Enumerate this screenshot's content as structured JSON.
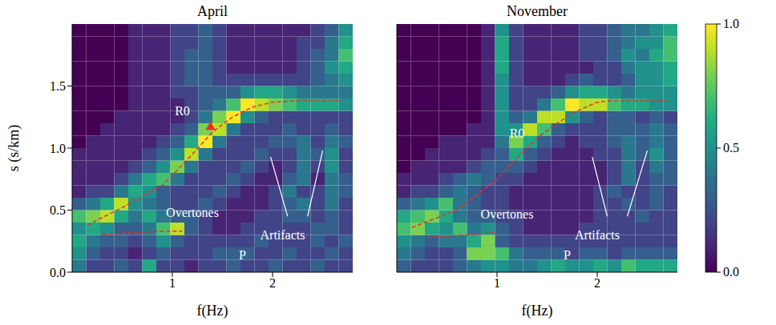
{
  "colorbar": {
    "range": [
      0,
      1
    ],
    "ticks": [
      {
        "value": 0,
        "label": "0.0"
      },
      {
        "value": 0.5,
        "label": "0.5"
      },
      {
        "value": 1,
        "label": "1.0"
      }
    ]
  },
  "chart_data": [
    {
      "type": "heatmap",
      "title": "April",
      "x_label": "f(Hz)",
      "y_label": "s (s/km)",
      "tick_labels": true,
      "xlim": [
        0,
        2.8
      ],
      "xticks": [
        1,
        2
      ],
      "ylim": [
        0,
        2.0
      ],
      "yticks": [
        {
          "value": 0,
          "label": "0.0"
        },
        {
          "value": 0.5,
          "label": "0.5"
        },
        {
          "value": 1,
          "label": "1.0"
        },
        {
          "value": 1.5,
          "label": "1.5"
        }
      ],
      "cell_f_edges": [
        0,
        0.14,
        0.28,
        0.42,
        0.56,
        0.7,
        0.84,
        0.98,
        1.12,
        1.26,
        1.4,
        1.54,
        1.68,
        1.82,
        1.96,
        2.1,
        2.24,
        2.38,
        2.52,
        2.66,
        2.8
      ],
      "cell_s_edges": [
        0,
        0.1,
        0.2,
        0.3,
        0.4,
        0.5,
        0.6,
        0.7,
        0.8,
        0.9,
        1.0,
        1.1,
        1.2,
        1.3,
        1.4,
        1.5,
        1.6,
        1.7,
        1.8,
        1.9,
        2.0
      ],
      "cells": [
        [
          0.4,
          0.2,
          0.2,
          0.3,
          0.2,
          0.6,
          0.2,
          0.2,
          0.1,
          0.2,
          0.2,
          0.3,
          0.2,
          0.2,
          0.3,
          0.2,
          0.2,
          0.3,
          0.2,
          0.2
        ],
        [
          0.5,
          0.3,
          0.2,
          0.2,
          0.1,
          0.2,
          0.3,
          0.2,
          0.2,
          0.2,
          0.3,
          0.3,
          0.3,
          0.2,
          0.2,
          0.3,
          0.2,
          0.2,
          0.3,
          0.2
        ],
        [
          0.6,
          0.4,
          0.3,
          0.3,
          0.2,
          0.3,
          0.5,
          0.3,
          0.2,
          0.2,
          0.2,
          0.2,
          0.2,
          0.3,
          0.2,
          0.2,
          0.2,
          0.3,
          0.2,
          0.3
        ],
        [
          0.5,
          0.6,
          0.5,
          0.3,
          0.3,
          0.4,
          0.7,
          0.9,
          0.3,
          0.2,
          0.1,
          0.1,
          0.2,
          0.2,
          0.2,
          0.2,
          0.2,
          0.3,
          0.3,
          0.2
        ],
        [
          0.7,
          0.8,
          0.9,
          0.6,
          0.4,
          0.6,
          0.4,
          0.3,
          0.3,
          0.2,
          0.1,
          0.1,
          0.1,
          0.2,
          0.2,
          0.3,
          0.3,
          0.2,
          0.3,
          0.2
        ],
        [
          0.3,
          0.4,
          0.6,
          0.9,
          0.5,
          0.4,
          0.3,
          0.2,
          0.2,
          0.3,
          0.2,
          0.1,
          0.1,
          0.1,
          0.2,
          0.3,
          0.4,
          0.2,
          0.4,
          0.2
        ],
        [
          0.1,
          0.2,
          0.2,
          0.4,
          0.6,
          0.5,
          0.3,
          0.2,
          0.2,
          0.2,
          0.3,
          0.2,
          0.1,
          0.1,
          0.2,
          0.4,
          0.2,
          0.2,
          0.4,
          0.3
        ],
        [
          0.1,
          0.1,
          0.1,
          0.2,
          0.4,
          0.6,
          0.7,
          0.4,
          0.2,
          0.2,
          0.2,
          0.3,
          0.2,
          0.1,
          0.1,
          0.3,
          0.4,
          0.1,
          0.4,
          0.3
        ],
        [
          0.1,
          0.1,
          0.1,
          0.1,
          0.2,
          0.3,
          0.5,
          0.8,
          0.4,
          0.2,
          0.2,
          0.2,
          0.3,
          0.2,
          0.1,
          0.2,
          0.4,
          0.2,
          0.5,
          0.2
        ],
        [
          0.1,
          0.1,
          0.1,
          0.1,
          0.1,
          0.2,
          0.3,
          0.5,
          0.9,
          0.4,
          0.2,
          0.2,
          0.2,
          0.3,
          0.2,
          0.2,
          0.4,
          0.3,
          0.5,
          0.2
        ],
        [
          0.0,
          0.1,
          0.1,
          0.1,
          0.1,
          0.1,
          0.2,
          0.3,
          0.6,
          1.0,
          0.4,
          0.2,
          0.2,
          0.2,
          0.3,
          0.3,
          0.4,
          0.2,
          0.4,
          0.3
        ],
        [
          0.0,
          0.0,
          0.1,
          0.1,
          0.1,
          0.1,
          0.1,
          0.2,
          0.3,
          0.8,
          0.9,
          0.4,
          0.2,
          0.2,
          0.2,
          0.3,
          0.2,
          0.2,
          0.3,
          0.2
        ],
        [
          0.0,
          0.0,
          0.0,
          0.1,
          0.1,
          0.1,
          0.1,
          0.1,
          0.2,
          0.4,
          0.8,
          1.0,
          0.5,
          0.3,
          0.2,
          0.2,
          0.2,
          0.2,
          0.2,
          0.2
        ],
        [
          0.0,
          0.0,
          0.0,
          0.0,
          0.1,
          0.1,
          0.1,
          0.1,
          0.2,
          0.3,
          0.4,
          0.7,
          1.0,
          0.9,
          0.8,
          0.7,
          0.6,
          0.6,
          0.6,
          0.5
        ],
        [
          0.0,
          0.0,
          0.0,
          0.0,
          0.1,
          0.1,
          0.1,
          0.2,
          0.2,
          0.3,
          0.3,
          0.3,
          0.5,
          0.6,
          0.6,
          0.5,
          0.4,
          0.4,
          0.4,
          0.4
        ],
        [
          0.0,
          0.0,
          0.0,
          0.0,
          0.1,
          0.1,
          0.1,
          0.2,
          0.3,
          0.3,
          0.2,
          0.2,
          0.2,
          0.2,
          0.2,
          0.2,
          0.2,
          0.3,
          0.4,
          0.5
        ],
        [
          0.0,
          0.0,
          0.0,
          0.0,
          0.1,
          0.1,
          0.1,
          0.2,
          0.3,
          0.3,
          0.2,
          0.1,
          0.1,
          0.1,
          0.1,
          0.1,
          0.2,
          0.3,
          0.5,
          0.6
        ],
        [
          0.0,
          0.0,
          0.0,
          0.0,
          0.1,
          0.1,
          0.1,
          0.2,
          0.3,
          0.3,
          0.2,
          0.1,
          0.1,
          0.1,
          0.1,
          0.1,
          0.2,
          0.3,
          0.4,
          0.7
        ],
        [
          0.0,
          0.0,
          0.0,
          0.0,
          0.1,
          0.1,
          0.1,
          0.2,
          0.2,
          0.3,
          0.2,
          0.1,
          0.1,
          0.1,
          0.1,
          0.1,
          0.2,
          0.2,
          0.4,
          0.6
        ],
        [
          0.0,
          0.0,
          0.0,
          0.0,
          0.1,
          0.1,
          0.1,
          0.2,
          0.2,
          0.3,
          0.2,
          0.1,
          0.1,
          0.1,
          0.1,
          0.1,
          0.1,
          0.2,
          0.3,
          0.5
        ]
      ],
      "curves": [
        {
          "x": [
            0.15,
            0.5,
            0.9,
            1.0,
            1.2,
            1.4,
            1.6,
            1.8,
            2.0,
            2.2,
            2.7
          ],
          "y": [
            0.38,
            0.52,
            0.7,
            0.78,
            0.95,
            1.13,
            1.25,
            1.33,
            1.37,
            1.38,
            1.38
          ],
          "color": "#e8302a",
          "line_style": "dashed"
        },
        {
          "x": [
            0.3,
            0.6,
            0.9,
            1.1
          ],
          "y": [
            0.3,
            0.32,
            0.33,
            0.33
          ],
          "color": "#e8302a",
          "line_style": "dashed"
        }
      ],
      "markers": [
        {
          "x": 1.38,
          "y": 1.17,
          "marker": "triangle",
          "color": "#e8302a"
        }
      ],
      "annotations": [
        {
          "text": "R0",
          "x": 1.1,
          "y": 1.3
        },
        {
          "text": "Overtones",
          "x": 1.2,
          "y": 0.48
        },
        {
          "text": "Artifacts",
          "x": 2.1,
          "y": 0.3
        },
        {
          "text": "P",
          "x": 1.7,
          "y": 0.14
        }
      ],
      "arrows": [
        {
          "x": [
            2.15,
            1.98
          ],
          "y": [
            0.45,
            0.93
          ]
        },
        {
          "x": [
            2.35,
            2.5
          ],
          "y": [
            0.45,
            0.98
          ]
        }
      ]
    },
    {
      "type": "heatmap",
      "title": "November",
      "x_label": "f(Hz)",
      "tick_labels": "x",
      "xlim": [
        0,
        2.8
      ],
      "xticks": [
        1,
        2
      ],
      "ylim": [
        0,
        2.0
      ],
      "yticks": [
        0,
        0.5,
        1,
        1.5
      ],
      "cell_f_edges": [
        0,
        0.14,
        0.28,
        0.42,
        0.56,
        0.7,
        0.84,
        0.98,
        1.12,
        1.26,
        1.4,
        1.54,
        1.68,
        1.82,
        1.96,
        2.1,
        2.24,
        2.38,
        2.52,
        2.66,
        2.8
      ],
      "cell_s_edges": [
        0,
        0.1,
        0.2,
        0.3,
        0.4,
        0.5,
        0.6,
        0.7,
        0.8,
        0.9,
        1.0,
        1.1,
        1.2,
        1.3,
        1.4,
        1.5,
        1.6,
        1.7,
        1.8,
        1.9,
        2.0
      ],
      "cells": [
        [
          0.3,
          0.2,
          0.2,
          0.2,
          0.3,
          0.4,
          0.5,
          0.5,
          0.4,
          0.4,
          0.5,
          0.6,
          0.5,
          0.5,
          0.6,
          0.5,
          0.7,
          0.6,
          0.6,
          0.6
        ],
        [
          0.4,
          0.3,
          0.2,
          0.2,
          0.3,
          0.8,
          0.8,
          0.7,
          0.4,
          0.3,
          0.3,
          0.3,
          0.2,
          0.3,
          0.3,
          0.2,
          0.3,
          0.3,
          0.3,
          0.3
        ],
        [
          0.5,
          0.4,
          0.3,
          0.4,
          0.4,
          0.6,
          0.8,
          0.3,
          0.2,
          0.2,
          0.2,
          0.2,
          0.2,
          0.2,
          0.2,
          0.2,
          0.2,
          0.2,
          0.2,
          0.2
        ],
        [
          0.7,
          0.8,
          0.6,
          0.5,
          0.7,
          0.4,
          0.5,
          0.3,
          0.2,
          0.1,
          0.1,
          0.1,
          0.1,
          0.2,
          0.2,
          0.2,
          0.2,
          0.2,
          0.2,
          0.2
        ],
        [
          0.6,
          0.7,
          0.8,
          0.6,
          0.4,
          0.3,
          0.3,
          0.2,
          0.2,
          0.1,
          0.1,
          0.1,
          0.1,
          0.1,
          0.2,
          0.2,
          0.2,
          0.3,
          0.2,
          0.2
        ],
        [
          0.3,
          0.4,
          0.5,
          0.7,
          0.4,
          0.3,
          0.2,
          0.2,
          0.1,
          0.1,
          0.1,
          0.1,
          0.1,
          0.1,
          0.2,
          0.2,
          0.3,
          0.2,
          0.3,
          0.2
        ],
        [
          0.1,
          0.2,
          0.2,
          0.3,
          0.4,
          0.3,
          0.2,
          0.2,
          0.1,
          0.1,
          0.1,
          0.1,
          0.1,
          0.1,
          0.2,
          0.3,
          0.2,
          0.2,
          0.3,
          0.2
        ],
        [
          0.1,
          0.1,
          0.1,
          0.2,
          0.3,
          0.4,
          0.3,
          0.2,
          0.2,
          0.1,
          0.1,
          0.1,
          0.1,
          0.1,
          0.1,
          0.2,
          0.4,
          0.2,
          0.3,
          0.3
        ],
        [
          0.0,
          0.1,
          0.1,
          0.1,
          0.1,
          0.2,
          0.3,
          0.3,
          0.3,
          0.2,
          0.1,
          0.1,
          0.1,
          0.1,
          0.1,
          0.2,
          0.4,
          0.2,
          0.4,
          0.3
        ],
        [
          0.0,
          0.0,
          0.1,
          0.1,
          0.1,
          0.1,
          0.2,
          0.3,
          0.6,
          0.3,
          0.2,
          0.1,
          0.1,
          0.1,
          0.2,
          0.2,
          0.4,
          0.3,
          0.5,
          0.3
        ],
        [
          0.0,
          0.0,
          0.0,
          0.1,
          0.1,
          0.1,
          0.1,
          0.4,
          0.8,
          0.6,
          0.3,
          0.2,
          0.1,
          0.2,
          0.2,
          0.3,
          0.4,
          0.3,
          0.4,
          0.3
        ],
        [
          0.0,
          0.0,
          0.0,
          0.0,
          0.0,
          0.1,
          0.1,
          0.5,
          0.5,
          0.9,
          0.7,
          0.3,
          0.2,
          0.2,
          0.2,
          0.3,
          0.3,
          0.3,
          0.4,
          0.3
        ],
        [
          0.0,
          0.0,
          0.0,
          0.0,
          0.0,
          0.0,
          0.1,
          0.5,
          0.3,
          0.4,
          0.9,
          0.9,
          0.5,
          0.3,
          0.2,
          0.3,
          0.3,
          0.2,
          0.3,
          0.2
        ],
        [
          0.0,
          0.0,
          0.0,
          0.0,
          0.0,
          0.0,
          0.1,
          0.5,
          0.2,
          0.2,
          0.4,
          0.7,
          1.0,
          0.9,
          0.9,
          0.7,
          0.6,
          0.6,
          0.5,
          0.5
        ],
        [
          0.0,
          0.0,
          0.0,
          0.0,
          0.0,
          0.0,
          0.1,
          0.5,
          0.2,
          0.2,
          0.2,
          0.3,
          0.5,
          0.6,
          0.6,
          0.5,
          0.4,
          0.5,
          0.5,
          0.5
        ],
        [
          0.0,
          0.0,
          0.0,
          0.0,
          0.0,
          0.0,
          0.1,
          0.5,
          0.2,
          0.1,
          0.1,
          0.1,
          0.2,
          0.3,
          0.2,
          0.2,
          0.3,
          0.5,
          0.5,
          0.6
        ],
        [
          0.0,
          0.0,
          0.0,
          0.0,
          0.0,
          0.0,
          0.1,
          0.6,
          0.2,
          0.1,
          0.1,
          0.1,
          0.1,
          0.1,
          0.2,
          0.2,
          0.4,
          0.5,
          0.5,
          0.6
        ],
        [
          0.0,
          0.0,
          0.0,
          0.0,
          0.0,
          0.0,
          0.1,
          0.6,
          0.2,
          0.1,
          0.1,
          0.1,
          0.1,
          0.2,
          0.2,
          0.3,
          0.5,
          0.4,
          0.6,
          0.7
        ],
        [
          0.0,
          0.0,
          0.0,
          0.0,
          0.0,
          0.0,
          0.1,
          0.6,
          0.2,
          0.1,
          0.1,
          0.1,
          0.1,
          0.2,
          0.2,
          0.3,
          0.4,
          0.5,
          0.5,
          0.7
        ],
        [
          0.0,
          0.0,
          0.0,
          0.0,
          0.0,
          0.0,
          0.1,
          0.5,
          0.2,
          0.1,
          0.1,
          0.1,
          0.1,
          0.2,
          0.2,
          0.3,
          0.4,
          0.4,
          0.5,
          0.6
        ]
      ],
      "curves": [
        {
          "x": [
            0.15,
            0.6,
            1.0,
            1.2,
            1.4,
            1.6,
            1.8,
            2.0,
            2.1,
            2.7
          ],
          "y": [
            0.36,
            0.5,
            0.75,
            0.92,
            1.08,
            1.2,
            1.3,
            1.37,
            1.38,
            1.38
          ],
          "color": "#e8302a",
          "line_style": "dashed"
        },
        {
          "x": [
            0.3,
            0.7,
            1.0
          ],
          "y": [
            0.28,
            0.3,
            0.32
          ],
          "color": "#e8302a",
          "line_style": "dashed"
        }
      ],
      "markers": [],
      "annotations": [
        {
          "text": "R0",
          "x": 1.2,
          "y": 1.12
        },
        {
          "text": "Overtones",
          "x": 1.1,
          "y": 0.47
        },
        {
          "text": "Artifacts",
          "x": 2.0,
          "y": 0.3
        },
        {
          "text": "P",
          "x": 1.7,
          "y": 0.14
        }
      ],
      "arrows": [
        {
          "x": [
            2.1,
            1.95
          ],
          "y": [
            0.45,
            0.93
          ]
        },
        {
          "x": [
            2.3,
            2.5
          ],
          "y": [
            0.45,
            0.98
          ]
        }
      ]
    }
  ]
}
